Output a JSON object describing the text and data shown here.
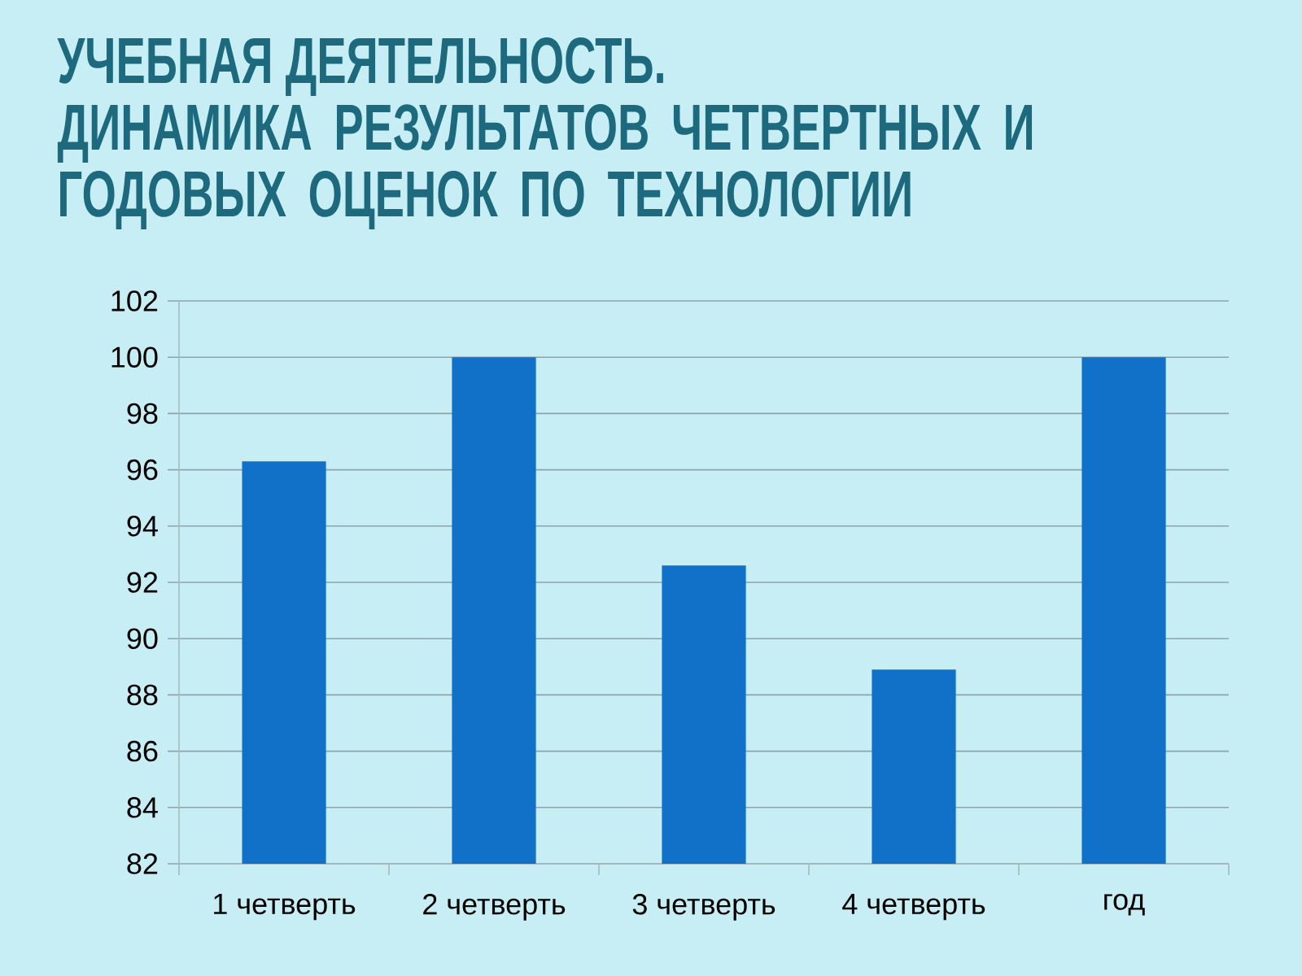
{
  "chart_data": {
    "type": "bar",
    "title": "УЧЕБНАЯ ДЕЯТЕЛЬНОСТЬ.",
    "subtitle": "ДИНАМИКА РЕЗУЛЬТАТОВ ЧЕТВЕРТНЫХ И ГОДОВЫХ ОЦЕНОК ПО ТЕХНОЛОГИИ",
    "categories": [
      "1 четверть",
      "2 четверть",
      "3 четверть",
      "4 четверть",
      "год"
    ],
    "values": [
      96.3,
      100,
      92.6,
      88.9,
      100
    ],
    "color": "#1170c8",
    "ylim": [
      82,
      102
    ],
    "yticks": [
      82,
      84,
      86,
      88,
      90,
      92,
      94,
      96,
      98,
      100,
      102
    ],
    "grid": "y"
  }
}
